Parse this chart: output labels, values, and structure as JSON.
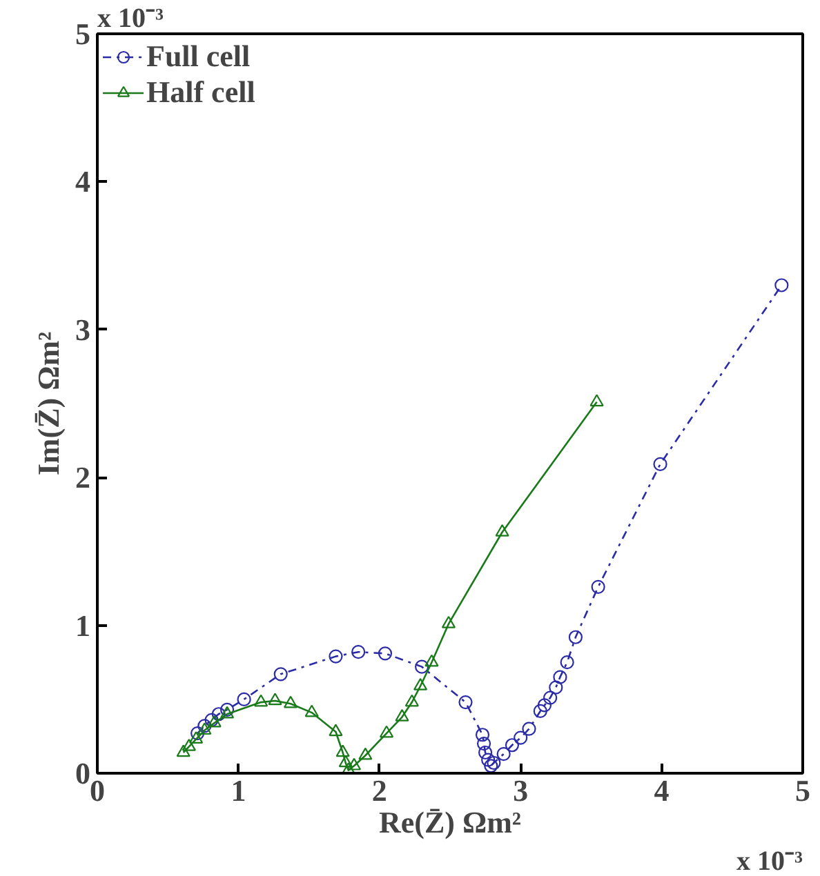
{
  "chart_data": {
    "type": "line",
    "xlabel": "Re(Z̄) Ωm²",
    "ylabel": "Im(Z̄) Ωm²",
    "annotations": [
      "x 10⁻³",
      "x 10⁻³"
    ],
    "xlim": [
      0,
      5
    ],
    "ylim": [
      0,
      5
    ],
    "xticks": [
      0,
      1,
      2,
      3,
      4,
      5
    ],
    "yticks": [
      0,
      1,
      2,
      3,
      4,
      5
    ],
    "grid": false,
    "legend": "top left",
    "series": [
      {
        "name": "Full cell",
        "color": "#2b2ba8",
        "marker": "circle",
        "line_style": "dashdot",
        "x": [
          0.71,
          0.76,
          0.81,
          0.86,
          0.92,
          1.04,
          1.3,
          1.69,
          1.85,
          2.04,
          2.3,
          2.61,
          2.73,
          2.74,
          2.75,
          2.77,
          2.79,
          2.81,
          2.88,
          2.94,
          3.0,
          3.06,
          3.14,
          3.17,
          3.21,
          3.25,
          3.28,
          3.33,
          3.39,
          3.55,
          3.99,
          4.85
        ],
        "values": [
          0.27,
          0.32,
          0.36,
          0.4,
          0.43,
          0.5,
          0.67,
          0.79,
          0.82,
          0.81,
          0.72,
          0.48,
          0.26,
          0.2,
          0.14,
          0.09,
          0.05,
          0.07,
          0.13,
          0.19,
          0.24,
          0.3,
          0.42,
          0.46,
          0.51,
          0.58,
          0.65,
          0.75,
          0.92,
          1.26,
          2.09,
          3.3
        ]
      },
      {
        "name": "Half cell",
        "color": "#1a7a1a",
        "marker": "triangle",
        "line_style": "solid",
        "x": [
          0.61,
          0.65,
          0.7,
          0.76,
          0.83,
          0.92,
          1.16,
          1.26,
          1.37,
          1.52,
          1.69,
          1.74,
          1.76,
          1.78,
          1.82,
          1.9,
          2.05,
          2.16,
          2.23,
          2.29,
          2.37,
          2.49,
          2.87,
          3.54
        ],
        "values": [
          0.14,
          0.18,
          0.23,
          0.29,
          0.34,
          0.4,
          0.48,
          0.49,
          0.47,
          0.41,
          0.28,
          0.14,
          0.07,
          0.02,
          0.05,
          0.12,
          0.27,
          0.38,
          0.48,
          0.59,
          0.75,
          1.01,
          1.63,
          2.51
        ]
      }
    ]
  }
}
